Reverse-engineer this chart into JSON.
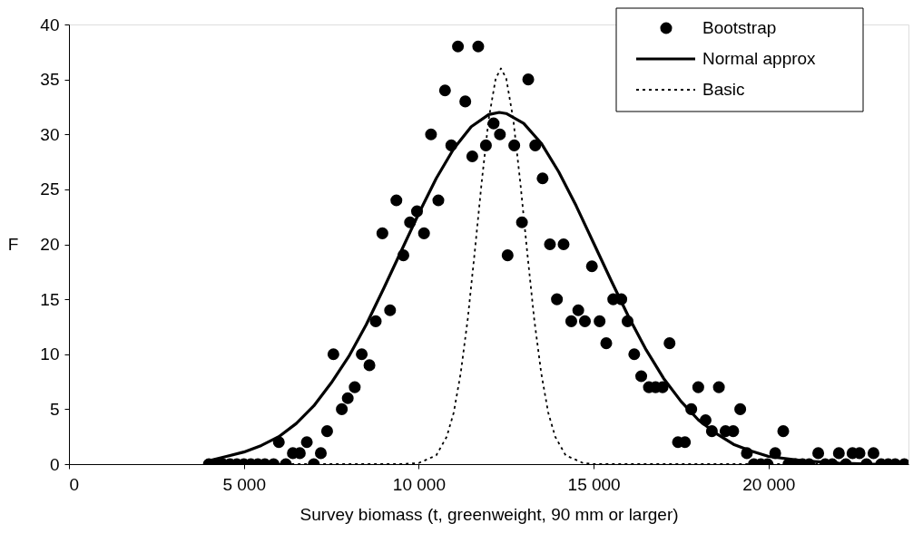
{
  "chart_data": {
    "type": "scatter",
    "xlabel": "Survey biomass (t, greenweight, 90 mm or larger)",
    "ylabel": "F",
    "xlim": [
      0,
      24000
    ],
    "xticks": [
      0,
      {
        "value": 5000,
        "label": "5 000"
      },
      {
        "value": 10000,
        "label": "10 000"
      },
      {
        "value": 15000,
        "label": "15 000"
      },
      {
        "value": 20000,
        "label": "20 000"
      }
    ],
    "ylim": [
      0,
      40
    ],
    "yticks": [
      0,
      5,
      10,
      15,
      20,
      25,
      30,
      35,
      40
    ],
    "grid": false,
    "legend": "top right",
    "series": [
      {
        "name": "Bootstrap",
        "marker": "circle",
        "color": "#000000",
        "x": [
          4000,
          4200,
          4400,
          4600,
          4800,
          5000,
          5200,
          5400,
          5600,
          5850,
          6000,
          6200,
          6400,
          6600,
          6800,
          7000,
          7200,
          7380,
          7560,
          7800,
          7970,
          8170,
          8370,
          8590,
          8770,
          8960,
          9180,
          9360,
          9560,
          9750,
          9950,
          10150,
          10350,
          10560,
          10750,
          10930,
          11120,
          11330,
          11530,
          11700,
          11920,
          12140,
          12320,
          12540,
          12730,
          12950,
          13130,
          13330,
          13540,
          13750,
          13950,
          14140,
          14360,
          14560,
          14750,
          14950,
          15170,
          15360,
          15560,
          15790,
          15970,
          16160,
          16360,
          16580,
          16770,
          16970,
          17170,
          17410,
          17610,
          17790,
          17990,
          18200,
          18380,
          18580,
          18770,
          18990,
          19190,
          19380,
          19580,
          19780,
          19970,
          20190,
          20420,
          20570,
          20770,
          20970,
          21160,
          21420,
          21620,
          21820,
          22010,
          22210,
          22400,
          22600,
          22800,
          23000,
          23220,
          23420,
          23620,
          23880
        ],
        "values": [
          0,
          0,
          0,
          0,
          0,
          0,
          0,
          0,
          0,
          0,
          2,
          0,
          1,
          1,
          2,
          0,
          1,
          3,
          10,
          5,
          6,
          7,
          10,
          9,
          13,
          21,
          14,
          24,
          19,
          22,
          23,
          21,
          30,
          24,
          34,
          29,
          38,
          33,
          28,
          38,
          29,
          31,
          30,
          19,
          29,
          22,
          35,
          29,
          26,
          20,
          15,
          20,
          13,
          14,
          13,
          18,
          13,
          11,
          15,
          15,
          13,
          10,
          8,
          7,
          7,
          7,
          11,
          2,
          2,
          5,
          7,
          4,
          3,
          7,
          3,
          3,
          5,
          1,
          0,
          0,
          0,
          1,
          3,
          0,
          0,
          0,
          0,
          1,
          0,
          0,
          1,
          0,
          1,
          1,
          0,
          1,
          0,
          0,
          0,
          0
        ]
      },
      {
        "name": "Normal approx",
        "type": "line",
        "line_style": "solid",
        "color": "#000000",
        "x": [
          4000,
          4500,
          5000,
          5500,
          6000,
          6500,
          7000,
          7500,
          8000,
          8500,
          9000,
          9500,
          10000,
          10500,
          11000,
          11500,
          12000,
          12300,
          12500,
          13000,
          13500,
          14000,
          14500,
          15000,
          15500,
          16000,
          16500,
          17000,
          17500,
          18000,
          18500,
          19000,
          19500,
          20000,
          21000,
          22000,
          23000,
          24000
        ],
        "values": [
          0.3,
          0.7,
          1.1,
          1.7,
          2.5,
          3.7,
          5.3,
          7.4,
          9.8,
          12.7,
          16,
          19.4,
          22.8,
          26,
          28.7,
          30.7,
          31.8,
          32,
          31.9,
          31,
          29.2,
          26.6,
          23.5,
          20.1,
          16.7,
          13.4,
          10.4,
          7.8,
          5.7,
          4,
          2.8,
          1.8,
          1.2,
          0.7,
          0.3,
          0.1,
          0,
          0
        ]
      },
      {
        "name": "Basic",
        "type": "line",
        "line_style": "dotted",
        "color": "#000000",
        "x": [
          4000,
          9500,
          10000,
          10500,
          10800,
          11000,
          11200,
          11400,
          11600,
          11800,
          12000,
          12200,
          12350,
          12500,
          12700,
          12900,
          13100,
          13300,
          13500,
          13700,
          13900,
          14200,
          14700,
          15000,
          24000
        ],
        "values": [
          0,
          0,
          0.1,
          0.8,
          2.5,
          4.7,
          8.3,
          13.2,
          19.3,
          25.7,
          31.4,
          35.1,
          36,
          35.1,
          31.4,
          25.7,
          19.3,
          13.2,
          8.3,
          4.7,
          2.5,
          0.8,
          0.1,
          0,
          0
        ]
      }
    ]
  }
}
